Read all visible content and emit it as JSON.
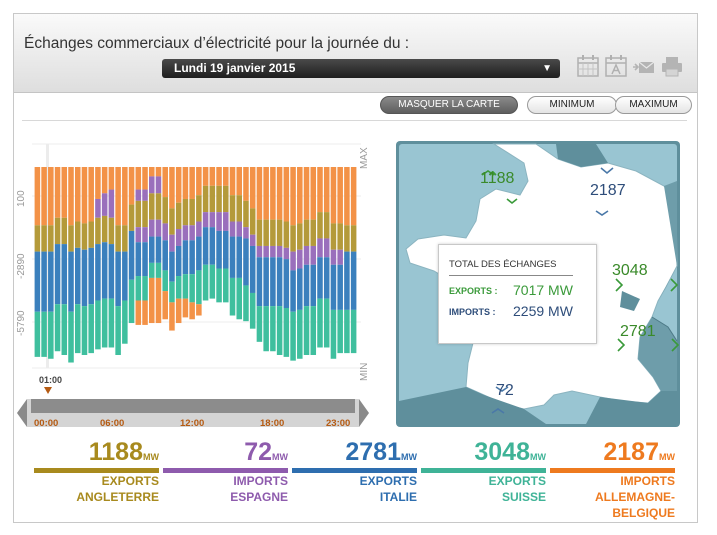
{
  "header": {
    "title": "Échanges commerciaux d’électricité pour la journée du :",
    "date_value": "Lundi 19 janvier 2015",
    "dropdown_arrow": "▼",
    "icons": [
      "calendar-icon",
      "calendar-a-icon",
      "email-icon",
      "print-icon"
    ]
  },
  "buttons": {
    "hide_map": "MASQUER LA CARTE",
    "minimum": "MINIMUM",
    "maximum": "MAXIMUM"
  },
  "chart": {
    "axis_top_label": "MAX",
    "axis_bottom_label": "MIN",
    "y_tick_labels": [
      "100",
      "-2890",
      "-5790"
    ],
    "cursor_time": "01:00",
    "time_labels": [
      "00:00",
      "06:00",
      "12:00",
      "18:00",
      "23:00"
    ]
  },
  "chart_data": {
    "type": "bar",
    "stacked": true,
    "bars_per_day": 48,
    "y_ticks": [
      100,
      -2890,
      -5790
    ],
    "series": [
      {
        "color": "#f39247",
        "values": [
          3100,
          3100,
          3100,
          2700,
          2700,
          3100,
          2900,
          3000,
          2900,
          1700,
          1400,
          1200,
          3100,
          3100,
          2000,
          1200,
          1200,
          500,
          500,
          1600,
          2200,
          1900,
          1700,
          1700,
          1500,
          1000,
          1000,
          1000,
          1000,
          1500,
          1500,
          1800,
          2200,
          2800,
          2800,
          2800,
          2800,
          2900,
          3100,
          3000,
          2800,
          2800,
          2400,
          2400,
          3000,
          3000,
          3100,
          3100
        ]
      },
      {
        "color": "#9a6fbc",
        "values": [
          0,
          0,
          0,
          0,
          0,
          0,
          0,
          0,
          0,
          1000,
          1200,
          1500,
          0,
          0,
          0,
          600,
          600,
          900,
          900,
          0,
          0,
          0,
          0,
          0,
          0,
          0,
          0,
          0,
          0,
          0,
          0,
          0,
          0,
          0,
          0,
          0,
          0,
          0,
          0,
          0,
          0,
          0,
          0,
          0,
          0,
          0,
          0,
          0
        ]
      },
      {
        "color": "#b49a3a",
        "values": [
          1400,
          1400,
          1400,
          1400,
          1400,
          1400,
          1400,
          1400,
          1400,
          1400,
          1400,
          1400,
          1400,
          1400,
          1400,
          1400,
          1400,
          1400,
          1400,
          1400,
          1400,
          1400,
          1400,
          1400,
          1400,
          1400,
          1400,
          1400,
          1400,
          1400,
          1400,
          1400,
          1400,
          1400,
          1400,
          1400,
          1400,
          1400,
          1400,
          1400,
          1400,
          1400,
          1400,
          1400,
          1400,
          1400,
          1400,
          1400
        ]
      },
      {
        "color": "#9a6fbc",
        "values": [
          0,
          0,
          0,
          0,
          0,
          0,
          0,
          0,
          0,
          0,
          0,
          0,
          0,
          0,
          0,
          800,
          800,
          900,
          900,
          900,
          900,
          900,
          800,
          800,
          800,
          800,
          800,
          1000,
          1000,
          800,
          800,
          600,
          600,
          600,
          600,
          600,
          600,
          600,
          1000,
          1000,
          1000,
          1000,
          1000,
          1000,
          800,
          800,
          0,
          0
        ]
      },
      {
        "color": "#3b80bd",
        "values": [
          3200,
          3200,
          3200,
          3200,
          3200,
          3200,
          3000,
          3000,
          3000,
          3000,
          3000,
          2900,
          2900,
          2600,
          2600,
          1800,
          1800,
          1400,
          1400,
          1600,
          1600,
          1600,
          1800,
          1800,
          1800,
          2000,
          2000,
          2000,
          2000,
          2200,
          2200,
          2500,
          2500,
          2600,
          2600,
          2600,
          2600,
          2600,
          2200,
          2200,
          2200,
          2200,
          2200,
          2200,
          2400,
          2400,
          3100,
          3100
        ]
      },
      {
        "color": "#3fbf9e",
        "values": [
          2400,
          2400,
          2500,
          2500,
          2700,
          2700,
          2600,
          2600,
          2600,
          2600,
          2600,
          2600,
          2600,
          2300,
          2300,
          1300,
          1300,
          800,
          800,
          1100,
          1100,
          1200,
          1300,
          1500,
          1800,
          1900,
          1800,
          1800,
          1800,
          2000,
          2200,
          1900,
          1900,
          1900,
          2400,
          2400,
          2600,
          2600,
          2600,
          2600,
          2600,
          2600,
          2600,
          2600,
          2600,
          2300,
          2300,
          2300
        ]
      },
      {
        "color": "#f39247",
        "values": [
          0,
          0,
          0,
          0,
          0,
          0,
          0,
          0,
          0,
          0,
          0,
          0,
          0,
          0,
          0,
          1300,
          1300,
          2400,
          2400,
          1500,
          1500,
          1300,
          1000,
          900,
          600,
          0,
          0,
          0,
          0,
          0,
          0,
          0,
          0,
          0,
          0,
          0,
          0,
          0,
          0,
          0,
          0,
          0,
          0,
          0,
          0,
          0,
          0,
          0
        ]
      }
    ]
  },
  "map": {
    "total_title": "TOTAL DES ÉCHANGES",
    "exports_label": "EXPORTS :",
    "exports_value": "7017 MW",
    "imports_label": "IMPORTS :",
    "imports_value": "2259 MW",
    "labels": {
      "uk": "1188",
      "belgium": "2187",
      "switzerland": "3048",
      "italy": "2781",
      "spain": "72"
    }
  },
  "stats": [
    {
      "key": "angleterre",
      "value": "1188",
      "unit": "MW",
      "direction": "EXPORTS",
      "country": "ANGLETERRE",
      "color": "#a88a1e"
    },
    {
      "key": "espagne",
      "value": "72",
      "unit": "MW",
      "direction": "IMPORTS",
      "country": "ESPAGNE",
      "color": "#8e5bad"
    },
    {
      "key": "italie",
      "value": "2781",
      "unit": "MW",
      "direction": "EXPORTS",
      "country": "ITALIE",
      "color": "#2e6eaf"
    },
    {
      "key": "suisse",
      "value": "3048",
      "unit": "MW",
      "direction": "EXPORTS",
      "country": "SUISSE",
      "color": "#3fb397"
    },
    {
      "key": "allemagne-belgique",
      "value": "2187",
      "unit": "MW",
      "direction": "IMPORTS",
      "country": "ALLEMAGNE-BELGIQUE",
      "color": "#ee7a1f"
    }
  ]
}
